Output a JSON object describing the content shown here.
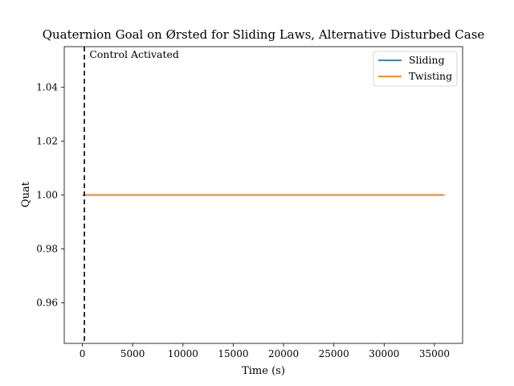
{
  "chart_data": {
    "type": "line",
    "title": "Quaternion Goal on Ørsted for Sliding Laws, Alternative Disturbed Case",
    "xlabel": "Time (s)",
    "ylabel": "Quat",
    "xlim": [
      -1800,
      37800
    ],
    "ylim": [
      0.945,
      1.055
    ],
    "xticks": [
      0,
      5000,
      10000,
      15000,
      20000,
      25000,
      30000,
      35000
    ],
    "xtick_labels": [
      "0",
      "5000",
      "10000",
      "15000",
      "20000",
      "25000",
      "30000",
      "35000"
    ],
    "yticks": [
      0.96,
      0.98,
      1.0,
      1.02,
      1.04
    ],
    "ytick_labels": [
      "0.96",
      "0.98",
      "1.00",
      "1.02",
      "1.04"
    ],
    "grid": false,
    "legend_position": "top-right",
    "series": [
      {
        "name": "Sliding",
        "color": "#1f77b4",
        "x": [
          0,
          36000
        ],
        "y": [
          1.0,
          1.0
        ]
      },
      {
        "name": "Twisting",
        "color": "#ff7f0e",
        "x": [
          0,
          36000
        ],
        "y": [
          1.0,
          1.0
        ]
      }
    ],
    "vline": {
      "x": 200,
      "color": "#000000",
      "style": "dashed"
    },
    "annotation": {
      "text": "Control Activated",
      "x": 700,
      "y": 1.052
    }
  }
}
